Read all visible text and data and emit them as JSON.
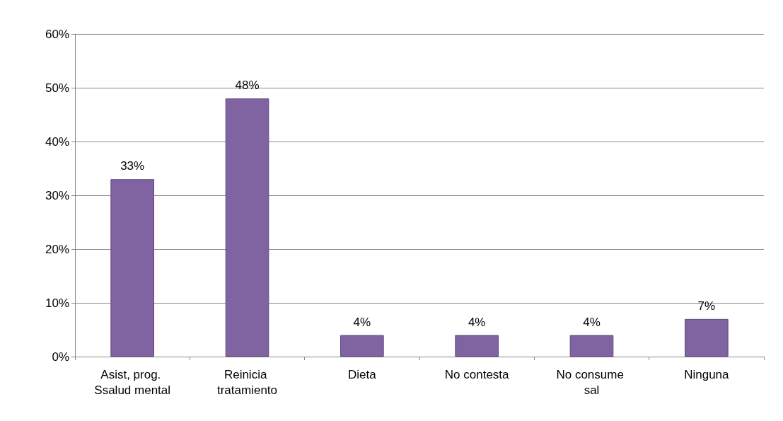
{
  "chart_data": {
    "type": "bar",
    "categories": [
      "Asist, prog. Ssalud mental",
      "Reinicia tratamiento",
      "Dieta",
      "No contesta",
      "No consume sal",
      "Ninguna"
    ],
    "values": [
      33,
      48,
      4,
      4,
      4,
      7
    ],
    "value_labels": [
      "33%",
      "48%",
      "4%",
      "4%",
      "4%",
      "7%"
    ],
    "color": "#8064a2",
    "ylim": [
      0,
      60
    ],
    "yticks": [
      {
        "value": 0,
        "label": "0%"
      },
      {
        "value": 10,
        "label": "10%"
      },
      {
        "value": 20,
        "label": "20%"
      },
      {
        "value": 30,
        "label": "30%"
      },
      {
        "value": 40,
        "label": "40%"
      },
      {
        "value": 50,
        "label": "50%"
      },
      {
        "value": 60,
        "label": "60%"
      }
    ],
    "grid": "y"
  }
}
